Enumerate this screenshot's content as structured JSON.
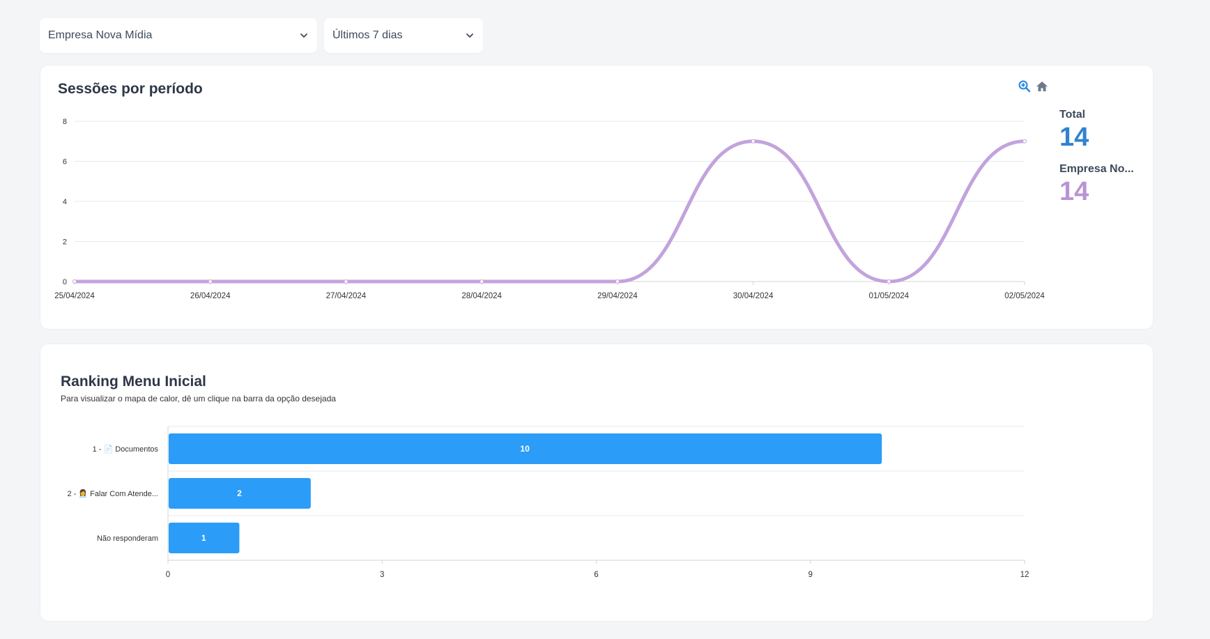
{
  "filters": {
    "company": "Empresa Nova Mídia",
    "period": "Últimos 7 dias"
  },
  "sessions": {
    "title": "Sessões por período",
    "legend": [
      {
        "label": "Total",
        "value": "14",
        "color": "#3182ce"
      },
      {
        "label": "Empresa No...",
        "value": "14",
        "color": "#b794d4"
      }
    ],
    "tools": [
      "zoom-in-icon",
      "home-icon"
    ]
  },
  "ranking": {
    "title": "Ranking Menu Inicial",
    "subtitle": "Para visualizar o mapa de calor, dê um clique na barra da opção desejada",
    "row_labels": [
      "1 - 📄 Documentos",
      "2 - 👩‍💼 Falar Com Atende...",
      "Não responderam"
    ]
  },
  "chart_data": [
    {
      "type": "line",
      "x": [
        "25/04/2024",
        "26/04/2024",
        "27/04/2024",
        "28/04/2024",
        "29/04/2024",
        "30/04/2024",
        "01/05/2024",
        "02/05/2024"
      ],
      "series": [
        {
          "values": [
            0,
            0,
            0,
            0,
            0,
            7,
            0,
            7
          ],
          "color": "#c3a3dc"
        }
      ],
      "ylim": [
        0,
        8
      ],
      "yticks": [
        0,
        2,
        4,
        6,
        8
      ],
      "grid": true,
      "curve": "smooth"
    },
    {
      "type": "bar",
      "orientation": "horizontal",
      "categories": [
        "1 - 📄 Documentos",
        "2 - 👩‍💼 Falar Com Atende...",
        "Não responderam"
      ],
      "values": [
        10,
        2,
        1
      ],
      "xlim": [
        0,
        12
      ],
      "xticks": [
        0,
        3,
        6,
        9,
        12
      ],
      "color": "#2b9cf7",
      "data_labels": true
    }
  ]
}
